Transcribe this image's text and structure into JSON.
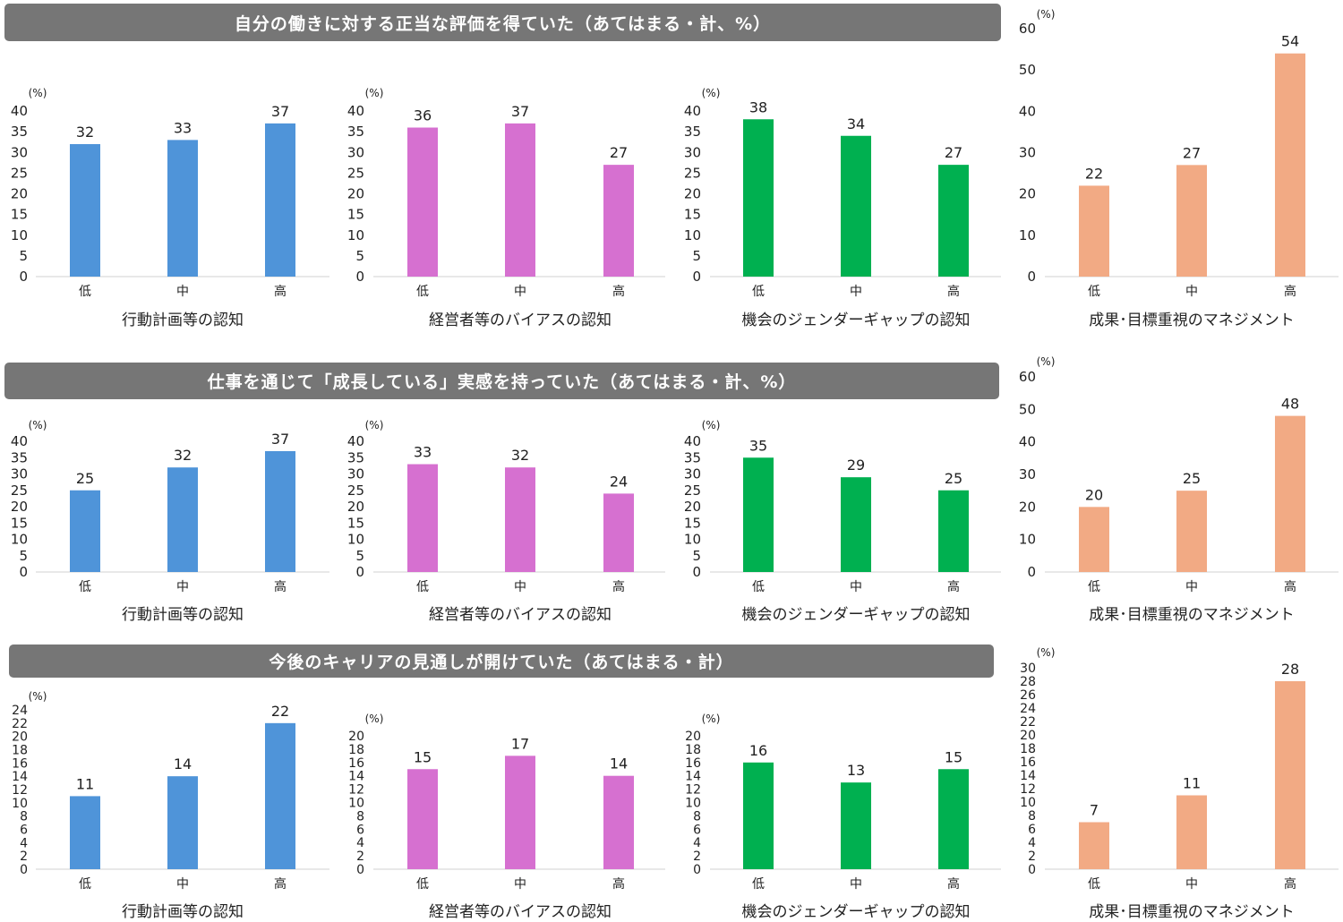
{
  "colors": {
    "banner_bg": "#767676",
    "action_plan": "#4F94D9",
    "management_bias": "#D670D0",
    "gender_gap": "#00B050",
    "results_mgmt": "#F2AA84"
  },
  "rows": [
    {
      "banner": "自分の働きに対する正当な評価を得ていた（あてはまる・計、%）"
    },
    {
      "banner": "仕事を通じて「成長している」実感を持っていた（あてはまる・計、%）"
    },
    {
      "banner": "今後のキャリアの見通しが開けていた（あてはまる・計）"
    }
  ],
  "chart_data": [
    {
      "type": "bar",
      "row": 0,
      "col": 0,
      "unit": "(%)",
      "xlabel": "行動計画等の認知",
      "categories": [
        "低",
        "中",
        "高"
      ],
      "values": [
        32,
        33,
        37
      ],
      "ylim": [
        0,
        40
      ],
      "yticks": [
        0,
        5,
        10,
        15,
        20,
        25,
        30,
        35,
        40
      ],
      "color": "#4F94D9"
    },
    {
      "type": "bar",
      "row": 0,
      "col": 1,
      "unit": "(%)",
      "xlabel": "経営者等のバイアスの認知",
      "categories": [
        "低",
        "中",
        "高"
      ],
      "values": [
        36,
        37,
        27
      ],
      "ylim": [
        0,
        40
      ],
      "yticks": [
        0,
        5,
        10,
        15,
        20,
        25,
        30,
        35,
        40
      ],
      "color": "#D670D0"
    },
    {
      "type": "bar",
      "row": 0,
      "col": 2,
      "unit": "(%)",
      "xlabel": "機会のジェンダーギャップの認知",
      "categories": [
        "低",
        "中",
        "高"
      ],
      "values": [
        38,
        34,
        27
      ],
      "ylim": [
        0,
        40
      ],
      "yticks": [
        0,
        5,
        10,
        15,
        20,
        25,
        30,
        35,
        40
      ],
      "color": "#00B050"
    },
    {
      "type": "bar",
      "row": 0,
      "col": 3,
      "unit": "(%)",
      "xlabel": "成果･目標重視のマネジメント",
      "categories": [
        "低",
        "中",
        "高"
      ],
      "values": [
        22,
        27,
        54
      ],
      "ylim": [
        0,
        60
      ],
      "yticks": [
        0,
        10,
        20,
        30,
        40,
        50,
        60
      ],
      "color": "#F2AA84"
    },
    {
      "type": "bar",
      "row": 1,
      "col": 0,
      "unit": "(%)",
      "xlabel": "行動計画等の認知",
      "categories": [
        "低",
        "中",
        "高"
      ],
      "values": [
        25,
        32,
        37
      ],
      "ylim": [
        0,
        40
      ],
      "yticks": [
        0,
        5,
        10,
        15,
        20,
        25,
        30,
        35,
        40
      ],
      "color": "#4F94D9"
    },
    {
      "type": "bar",
      "row": 1,
      "col": 1,
      "unit": "(%)",
      "xlabel": "経営者等のバイアスの認知",
      "categories": [
        "低",
        "中",
        "高"
      ],
      "values": [
        33,
        32,
        24
      ],
      "ylim": [
        0,
        40
      ],
      "yticks": [
        0,
        5,
        10,
        15,
        20,
        25,
        30,
        35,
        40
      ],
      "color": "#D670D0"
    },
    {
      "type": "bar",
      "row": 1,
      "col": 2,
      "unit": "(%)",
      "xlabel": "機会のジェンダーギャップの認知",
      "categories": [
        "低",
        "中",
        "高"
      ],
      "values": [
        35,
        29,
        25
      ],
      "ylim": [
        0,
        40
      ],
      "yticks": [
        0,
        5,
        10,
        15,
        20,
        25,
        30,
        35,
        40
      ],
      "color": "#00B050"
    },
    {
      "type": "bar",
      "row": 1,
      "col": 3,
      "unit": "(%)",
      "xlabel": "成果･目標重視のマネジメント",
      "categories": [
        "低",
        "中",
        "高"
      ],
      "values": [
        20,
        25,
        48
      ],
      "ylim": [
        0,
        60
      ],
      "yticks": [
        0,
        10,
        20,
        30,
        40,
        50,
        60
      ],
      "color": "#F2AA84"
    },
    {
      "type": "bar",
      "row": 2,
      "col": 0,
      "unit": "(%)",
      "xlabel": "行動計画等の認知",
      "categories": [
        "低",
        "中",
        "高"
      ],
      "values": [
        11,
        14,
        22
      ],
      "ylim": [
        0,
        24
      ],
      "yticks": [
        0,
        2,
        4,
        6,
        8,
        10,
        12,
        14,
        16,
        18,
        20,
        22,
        24
      ],
      "color": "#4F94D9"
    },
    {
      "type": "bar",
      "row": 2,
      "col": 1,
      "unit": "(%)",
      "xlabel": "経営者等のバイアスの認知",
      "categories": [
        "低",
        "中",
        "高"
      ],
      "values": [
        15,
        17,
        14
      ],
      "ylim": [
        0,
        20
      ],
      "yticks": [
        0,
        2,
        4,
        6,
        8,
        10,
        12,
        14,
        16,
        18,
        20
      ],
      "color": "#D670D0"
    },
    {
      "type": "bar",
      "row": 2,
      "col": 2,
      "unit": "(%)",
      "xlabel": "機会のジェンダーギャップの認知",
      "categories": [
        "低",
        "中",
        "高"
      ],
      "values": [
        16,
        13,
        15
      ],
      "ylim": [
        0,
        20
      ],
      "yticks": [
        0,
        2,
        4,
        6,
        8,
        10,
        12,
        14,
        16,
        18,
        20
      ],
      "color": "#00B050"
    },
    {
      "type": "bar",
      "row": 2,
      "col": 3,
      "unit": "(%)",
      "xlabel": "成果･目標重視のマネジメント",
      "categories": [
        "低",
        "中",
        "高"
      ],
      "values": [
        7,
        11,
        28
      ],
      "ylim": [
        0,
        30
      ],
      "yticks": [
        0,
        2,
        4,
        6,
        8,
        10,
        12,
        14,
        16,
        18,
        20,
        22,
        24,
        26,
        28,
        30
      ],
      "color": "#F2AA84"
    }
  ]
}
